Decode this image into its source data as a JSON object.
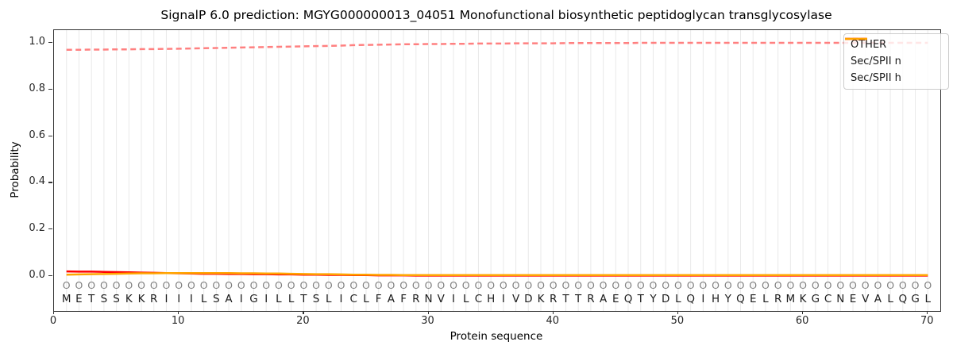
{
  "colors": {
    "other": "#ff8080",
    "sec_spii_n": "#ff0000",
    "sec_spii_h": "#ffa500",
    "grid": "#e9e9e9",
    "spine": "#333333",
    "residue_marker": "#808080",
    "sequence_letter": "#1c1c1c"
  },
  "legend": {
    "position": "upper right",
    "entries": [
      "OTHER",
      "Sec/SPII n",
      "Sec/SPII h"
    ]
  },
  "chart_data": {
    "type": "line",
    "title": "SignalP 6.0 prediction: MGYG000000013_04051 Monofunctional biosynthetic peptidoglycan transglycosylase",
    "xlabel": "Protein sequence",
    "ylabel": "Probability",
    "xlim": [
      0,
      71
    ],
    "ylim": [
      -0.15,
      1.055
    ],
    "xticks": [
      0,
      10,
      20,
      30,
      40,
      50,
      60,
      70
    ],
    "yticks": [
      0.0,
      0.2,
      0.4,
      0.6,
      0.8,
      1.0
    ],
    "grid": "vertical gridline at every residue position",
    "legend_position": "upper right",
    "x": [
      1,
      2,
      3,
      4,
      5,
      6,
      7,
      8,
      9,
      10,
      11,
      12,
      13,
      14,
      15,
      16,
      17,
      18,
      19,
      20,
      21,
      22,
      23,
      24,
      25,
      26,
      27,
      28,
      29,
      30,
      31,
      32,
      33,
      34,
      35,
      36,
      37,
      38,
      39,
      40,
      41,
      42,
      43,
      44,
      45,
      46,
      47,
      48,
      49,
      50,
      51,
      52,
      53,
      54,
      55,
      56,
      57,
      58,
      59,
      60,
      61,
      62,
      63,
      64,
      65,
      66,
      67,
      68,
      69,
      70
    ],
    "series": [
      {
        "name": "OTHER",
        "style": "dashed",
        "color": "#ff8080",
        "values": [
          0.97,
          0.97,
          0.971,
          0.971,
          0.972,
          0.972,
          0.973,
          0.973,
          0.974,
          0.975,
          0.976,
          0.977,
          0.978,
          0.979,
          0.98,
          0.981,
          0.982,
          0.983,
          0.984,
          0.985,
          0.986,
          0.987,
          0.988,
          0.99,
          0.991,
          0.992,
          0.993,
          0.994,
          0.994,
          0.995,
          0.995,
          0.996,
          0.996,
          0.997,
          0.997,
          0.997,
          0.998,
          0.998,
          0.998,
          0.998,
          0.999,
          0.999,
          0.999,
          0.999,
          0.999,
          0.999,
          1.0,
          1.0,
          1.0,
          1.0,
          1.0,
          1.0,
          1.0,
          1.0,
          1.0,
          1.0,
          1.0,
          1.0,
          1.0,
          1.0,
          1.0,
          1.0,
          1.0,
          1.0,
          1.0,
          1.0,
          1.0,
          1.0,
          1.0,
          1.0
        ]
      },
      {
        "name": "Sec/SPII n",
        "style": "solid",
        "color": "#ff0000",
        "values": [
          0.02,
          0.019,
          0.019,
          0.018,
          0.017,
          0.016,
          0.015,
          0.014,
          0.013,
          0.012,
          0.011,
          0.01,
          0.01,
          0.009,
          0.009,
          0.008,
          0.008,
          0.007,
          0.007,
          0.006,
          0.006,
          0.005,
          0.005,
          0.004,
          0.004,
          0.003,
          0.003,
          0.003,
          0.002,
          0.002,
          0.002,
          0.002,
          0.002,
          0.002,
          0.002,
          0.002,
          0.002,
          0.002,
          0.002,
          0.002,
          0.002,
          0.002,
          0.002,
          0.002,
          0.002,
          0.002,
          0.002,
          0.002,
          0.002,
          0.002,
          0.002,
          0.002,
          0.002,
          0.002,
          0.002,
          0.002,
          0.002,
          0.002,
          0.002,
          0.002,
          0.002,
          0.002,
          0.002,
          0.002,
          0.002,
          0.002,
          0.002,
          0.002,
          0.002,
          0.002
        ]
      },
      {
        "name": "Sec/SPII h",
        "style": "solid",
        "color": "#ffa500",
        "values": [
          0.006,
          0.007,
          0.008,
          0.009,
          0.01,
          0.011,
          0.012,
          0.012,
          0.013,
          0.013,
          0.013,
          0.013,
          0.013,
          0.013,
          0.012,
          0.012,
          0.011,
          0.011,
          0.01,
          0.009,
          0.008,
          0.008,
          0.007,
          0.006,
          0.006,
          0.005,
          0.005,
          0.004,
          0.004,
          0.004,
          0.004,
          0.004,
          0.004,
          0.004,
          0.004,
          0.004,
          0.004,
          0.004,
          0.004,
          0.004,
          0.004,
          0.004,
          0.004,
          0.004,
          0.004,
          0.004,
          0.004,
          0.004,
          0.004,
          0.004,
          0.004,
          0.004,
          0.004,
          0.004,
          0.004,
          0.004,
          0.004,
          0.004,
          0.004,
          0.004,
          0.004,
          0.004,
          0.004,
          0.004,
          0.004,
          0.004,
          0.004,
          0.004,
          0.004,
          0.004
        ]
      }
    ],
    "sequence": "METSSKKRIIILSAIGILLTSLICLFAFRNVILCHIVDKRTTRAEQTYDLQIHYQELRMKGCNEVALQGL",
    "residue_labels": "OOOOOOOOOOOOOOOOOOOOOOOOOOOOOOOOOOOOOOOOOOOOOOOOOOOOOOOOOOOOOOOOOOOOOO"
  }
}
